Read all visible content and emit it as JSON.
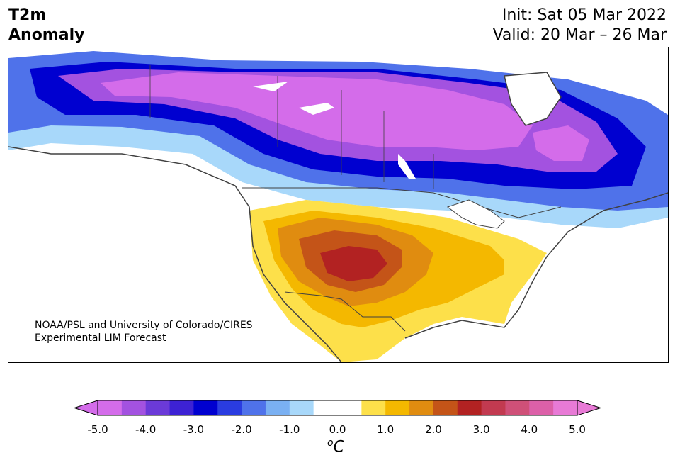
{
  "header": {
    "title_line1": "T2m",
    "title_line2": "Anomaly",
    "init": "Init: Sat 05 Mar 2022",
    "valid": "Valid: 20 Mar – 26 Mar"
  },
  "credit": {
    "line1": "NOAA/PSL and University of Colorado/CIRES",
    "line2": "Experimental LIM Forecast"
  },
  "colorbar": {
    "unit": "C",
    "unit_prefix": "o",
    "ticks": [
      "-5.0",
      "-4.0",
      "-3.0",
      "-2.0",
      "-1.0",
      "0.0",
      "1.0",
      "2.0",
      "3.0",
      "4.0",
      "5.0"
    ],
    "colors": [
      "#d46cea",
      "#a352e0",
      "#6b3ad8",
      "#3d22d4",
      "#0000d0",
      "#2a3ce0",
      "#4f72ea",
      "#7ab0f2",
      "#a8d8fa",
      "#ffffff",
      "#ffffff",
      "#fde04a",
      "#f4b800",
      "#e08c10",
      "#c45418",
      "#b22222",
      "#c23a50",
      "#cf5078",
      "#dc60a8",
      "#e87ad6"
    ]
  },
  "map": {
    "region": "North America",
    "field": "2 m temperature anomaly"
  }
}
